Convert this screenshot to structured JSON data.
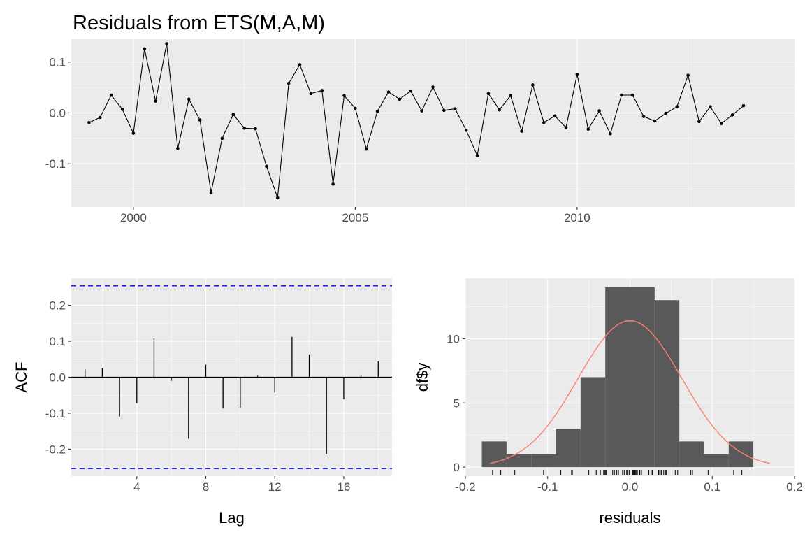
{
  "title": "Residuals from ETS(M,A,M)",
  "chart_data": [
    {
      "type": "line",
      "name": "residuals-time-series",
      "title": "Residuals from ETS(M,A,M)",
      "xlabel": "",
      "ylabel": "",
      "xlim": [
        1998.6,
        2014.9
      ],
      "ylim": [
        -0.185,
        0.145
      ],
      "x_ticks": [
        2000,
        2005,
        2010
      ],
      "x_tick_labels": [
        "2000",
        "2005",
        "2010"
      ],
      "y_ticks": [
        -0.1,
        0.0,
        0.1
      ],
      "y_tick_labels": [
        "-0.1",
        "0.0",
        "0.1"
      ],
      "x_start": 1999.0,
      "x_step": 0.25,
      "values": [
        -0.019,
        -0.009,
        0.035,
        0.007,
        -0.04,
        0.126,
        0.023,
        0.136,
        -0.07,
        0.027,
        -0.014,
        -0.157,
        -0.05,
        -0.003,
        -0.03,
        -0.031,
        -0.105,
        -0.167,
        0.058,
        0.095,
        0.038,
        0.044,
        -0.14,
        0.034,
        0.009,
        -0.071,
        0.003,
        0.041,
        0.027,
        0.043,
        0.004,
        0.051,
        0.005,
        0.008,
        -0.034,
        -0.084,
        0.038,
        0.006,
        0.034,
        -0.036,
        0.055,
        -0.019,
        -0.006,
        -0.029,
        0.076,
        -0.032,
        0.004,
        -0.041,
        0.035,
        0.035,
        -0.007,
        -0.016,
        -0.001,
        0.012,
        0.074,
        -0.017,
        0.012,
        -0.021,
        -0.004,
        0.014
      ],
      "grid": true
    },
    {
      "type": "bar",
      "name": "acf",
      "xlabel": "Lag",
      "ylabel": "ACF",
      "xlim": [
        0.2,
        18.8
      ],
      "ylim": [
        -0.275,
        0.275
      ],
      "x_ticks": [
        4,
        8,
        12,
        16
      ],
      "x_tick_labels": [
        "4",
        "8",
        "12",
        "16"
      ],
      "y_ticks": [
        -0.2,
        -0.1,
        0.0,
        0.1,
        0.2
      ],
      "y_tick_labels": [
        "-0.2",
        "-0.1",
        "0.0",
        "0.1",
        "0.2"
      ],
      "lags": [
        1,
        2,
        3,
        4,
        5,
        6,
        7,
        8,
        9,
        10,
        11,
        12,
        13,
        14,
        15,
        16,
        17,
        18
      ],
      "values": [
        0.022,
        0.025,
        -0.109,
        -0.072,
        0.108,
        -0.01,
        -0.171,
        0.035,
        -0.087,
        -0.085,
        0.004,
        -0.043,
        0.112,
        0.063,
        -0.213,
        -0.061,
        0.007,
        0.044
      ],
      "confidence_bounds": [
        0.254,
        -0.254
      ],
      "bound_color": "#0000ff",
      "grid": true
    },
    {
      "type": "histogram",
      "name": "residual-histogram",
      "xlabel": "residuals",
      "ylabel": "df$y",
      "xlim": [
        -0.2,
        0.2
      ],
      "ylim": [
        -0.7,
        14.7
      ],
      "x_ticks": [
        -0.2,
        -0.1,
        0.0,
        0.1,
        0.2
      ],
      "x_tick_labels": [
        "-0.2",
        "-0.1",
        "0.0",
        "0.1",
        "0.2"
      ],
      "y_ticks": [
        0,
        5,
        10
      ],
      "y_tick_labels": [
        "0",
        "5",
        "10"
      ],
      "bin_edges": [
        -0.18,
        -0.15,
        -0.12,
        -0.09,
        -0.06,
        -0.03,
        0.0,
        0.03,
        0.06,
        0.09,
        0.12,
        0.15
      ],
      "counts": [
        2,
        1,
        1,
        3,
        7,
        14,
        14,
        13,
        2,
        1,
        2
      ],
      "bar_color": "#595959",
      "density_curve": {
        "mean": 0.0,
        "sd": 0.063,
        "n": 60,
        "binwidth": 0.03,
        "xrange": [
          -0.17,
          0.17
        ],
        "color": "#fa8072"
      },
      "rug": true,
      "grid": true
    }
  ]
}
